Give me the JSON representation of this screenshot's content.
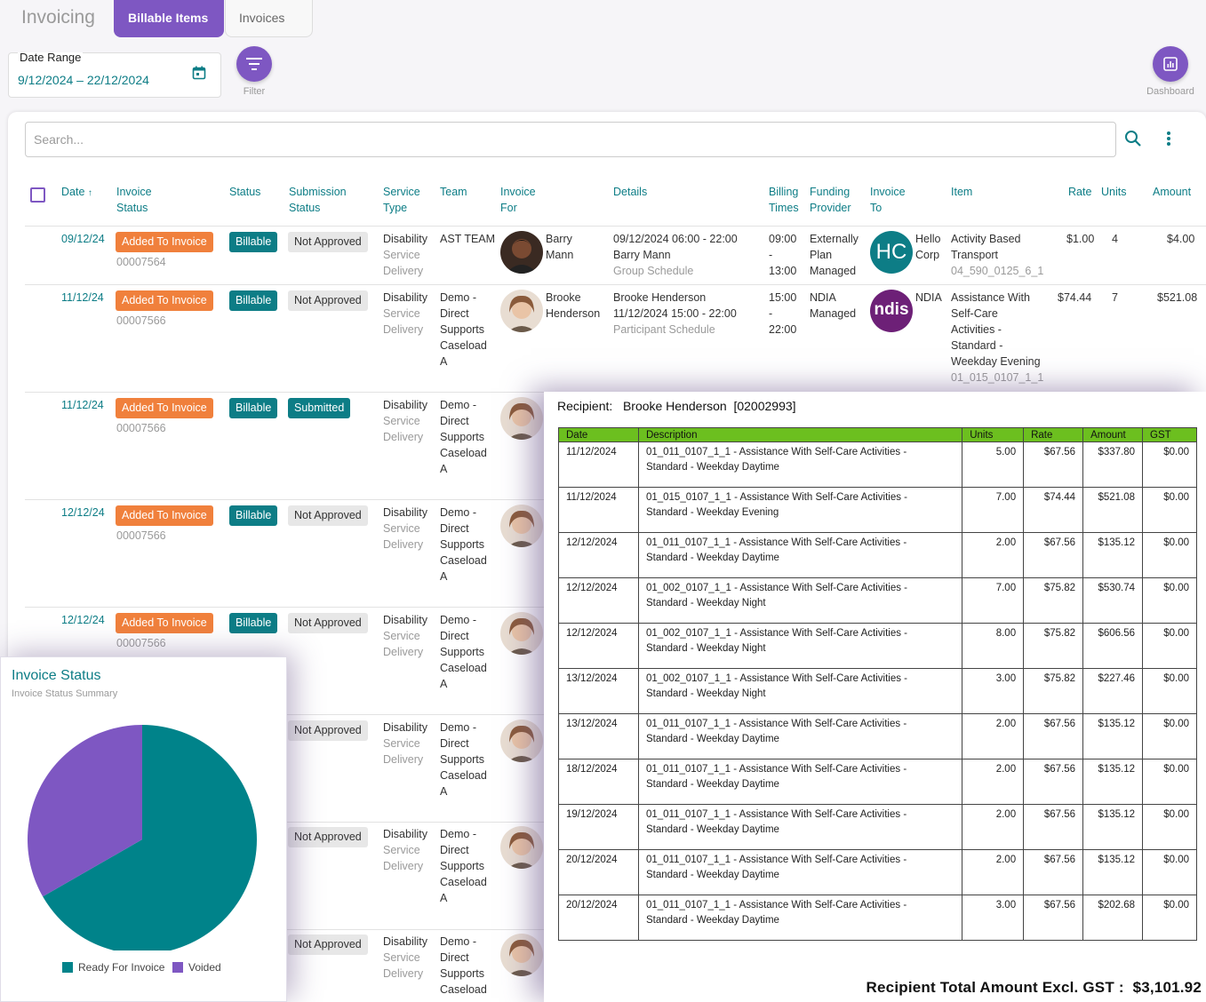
{
  "app": {
    "title": "Invoicing",
    "tabs": [
      "Billable Items",
      "Invoices"
    ]
  },
  "filters": {
    "date_range_label": "Date Range",
    "date_range_value": "9/12/2024 – 22/12/2024",
    "filter_label": "Filter",
    "dashboard_label": "Dashboard"
  },
  "search": {
    "placeholder": "Search..."
  },
  "table": {
    "headers": {
      "date": "Date",
      "invoice_status": [
        "Invoice",
        "Status"
      ],
      "status": "Status",
      "submission_status": [
        "Submission",
        "Status"
      ],
      "service_type": [
        "Service",
        "Type"
      ],
      "team": "Team",
      "invoice_for": [
        "Invoice",
        "For"
      ],
      "details": "Details",
      "billing_times": [
        "Billing",
        "Times"
      ],
      "funding_provider": [
        "Funding",
        "Provider"
      ],
      "invoice_to": [
        "Invoice",
        "To"
      ],
      "item": "Item",
      "rate": "Rate",
      "units": "Units",
      "amount": "Amount"
    },
    "rows": [
      {
        "date": "09/12/24",
        "invoice_status": "Added To Invoice",
        "invoice_no": "00007564",
        "status": "Billable",
        "submission": "Not Approved",
        "service": [
          "Disability",
          "Service",
          "Delivery"
        ],
        "team": [
          "AST TEAM"
        ],
        "person": [
          "Barry",
          "Mann"
        ],
        "details": [
          "09/12/2024 06:00 - 22:00",
          "Barry Mann"
        ],
        "details_sub": "Group Schedule",
        "billing": [
          "09:00",
          "-",
          "13:00"
        ],
        "funding": [
          "Externally",
          "Plan",
          "Managed"
        ],
        "invoice_to_logo": "HC",
        "invoice_to": [
          "Hello",
          "Corp"
        ],
        "item": [
          "Activity Based",
          "Transport"
        ],
        "item_code": "04_590_0125_6_1",
        "rate": "$1.00",
        "units": "4",
        "amount": "$4.00"
      },
      {
        "date": "11/12/24",
        "invoice_status": "Added To Invoice",
        "invoice_no": "00007566",
        "status": "Billable",
        "submission": "Not Approved",
        "service": [
          "Disability",
          "Service",
          "Delivery"
        ],
        "team": [
          "Demo -",
          "Direct",
          "Supports",
          "Caseload",
          "A"
        ],
        "person": [
          "Brooke",
          "Henderson"
        ],
        "details": [
          "Brooke Henderson",
          "11/12/2024 15:00 - 22:00"
        ],
        "details_sub": "Participant Schedule",
        "billing": [
          "15:00",
          "-",
          "22:00"
        ],
        "funding": [
          "NDIA",
          "Managed"
        ],
        "invoice_to_logo": "ndis",
        "invoice_to": [
          "NDIA"
        ],
        "item": [
          "Assistance With",
          "Self-Care",
          "Activities -",
          "Standard -",
          "Weekday Evening"
        ],
        "item_code": "01_015_0107_1_1",
        "rate": "$74.44",
        "units": "7",
        "amount": "$521.08"
      },
      {
        "date": "11/12/24",
        "invoice_status": "Added To Invoice",
        "invoice_no": "00007566",
        "status": "Billable",
        "submission": "Submitted",
        "service": [
          "Disability",
          "Service",
          "Delivery"
        ],
        "team": [
          "Demo -",
          "Direct",
          "Supports",
          "Caseload",
          "A"
        ]
      },
      {
        "date": "12/12/24",
        "invoice_status": "Added To Invoice",
        "invoice_no": "00007566",
        "status": "Billable",
        "submission": "Not Approved",
        "service": [
          "Disability",
          "Service",
          "Delivery"
        ],
        "team": [
          "Demo -",
          "Direct",
          "Supports",
          "Caseload",
          "A"
        ]
      },
      {
        "date": "12/12/24",
        "invoice_status": "Added To Invoice",
        "invoice_no": "00007566",
        "status": "Billable",
        "submission": "Not Approved",
        "service": [
          "Disability",
          "Service",
          "Delivery"
        ],
        "team": [
          "Demo -",
          "Direct",
          "Supports",
          "Caseload",
          "A"
        ]
      },
      {
        "submission": "Not Approved",
        "service": [
          "Disability",
          "Service",
          "Delivery"
        ],
        "team": [
          "Demo -",
          "Direct",
          "Supports",
          "Caseload",
          "A"
        ]
      },
      {
        "submission": "Not Approved",
        "service": [
          "Disability",
          "Service",
          "Delivery"
        ],
        "team": [
          "Demo -",
          "Direct",
          "Supports",
          "Caseload",
          "A"
        ]
      },
      {
        "submission": "Not Approved",
        "service": [
          "Disability",
          "Service",
          "Delivery"
        ],
        "team": [
          "Demo -",
          "Direct",
          "Supports",
          "Caseload"
        ]
      }
    ]
  },
  "invoice_doc": {
    "recipient_label": "Recipient:",
    "recipient_name": "Brooke Henderson",
    "recipient_id": "[02002993]",
    "columns": [
      "Date",
      "Description",
      "Units",
      "Rate",
      "Amount",
      "GST"
    ],
    "lines": [
      {
        "date": "11/12/2024",
        "desc": [
          "01_011_0107_1_1 - Assistance With Self-Care Activities -",
          "Standard - Weekday Daytime"
        ],
        "units": "5.00",
        "rate": "$67.56",
        "amount": "$337.80",
        "gst": "$0.00"
      },
      {
        "date": "11/12/2024",
        "desc": [
          "01_015_0107_1_1 - Assistance With Self-Care Activities -",
          "Standard - Weekday Evening"
        ],
        "units": "7.00",
        "rate": "$74.44",
        "amount": "$521.08",
        "gst": "$0.00"
      },
      {
        "date": "12/12/2024",
        "desc": [
          "01_011_0107_1_1 - Assistance With Self-Care Activities -",
          "Standard - Weekday Daytime"
        ],
        "units": "2.00",
        "rate": "$67.56",
        "amount": "$135.12",
        "gst": "$0.00"
      },
      {
        "date": "12/12/2024",
        "desc": [
          "01_002_0107_1_1 - Assistance With Self-Care Activities -",
          "Standard - Weekday Night"
        ],
        "units": "7.00",
        "rate": "$75.82",
        "amount": "$530.74",
        "gst": "$0.00"
      },
      {
        "date": "12/12/2024",
        "desc": [
          "01_002_0107_1_1 - Assistance With Self-Care Activities -",
          "Standard - Weekday Night"
        ],
        "units": "8.00",
        "rate": "$75.82",
        "amount": "$606.56",
        "gst": "$0.00"
      },
      {
        "date": "13/12/2024",
        "desc": [
          "01_002_0107_1_1 - Assistance With Self-Care Activities -",
          "Standard - Weekday Night"
        ],
        "units": "3.00",
        "rate": "$75.82",
        "amount": "$227.46",
        "gst": "$0.00"
      },
      {
        "date": "13/12/2024",
        "desc": [
          "01_011_0107_1_1 - Assistance With Self-Care Activities -",
          "Standard - Weekday Daytime"
        ],
        "units": "2.00",
        "rate": "$67.56",
        "amount": "$135.12",
        "gst": "$0.00"
      },
      {
        "date": "18/12/2024",
        "desc": [
          "01_011_0107_1_1 - Assistance With Self-Care Activities -",
          "Standard - Weekday Daytime"
        ],
        "units": "2.00",
        "rate": "$67.56",
        "amount": "$135.12",
        "gst": "$0.00"
      },
      {
        "date": "19/12/2024",
        "desc": [
          "01_011_0107_1_1 - Assistance With Self-Care Activities -",
          "Standard - Weekday Daytime"
        ],
        "units": "2.00",
        "rate": "$67.56",
        "amount": "$135.12",
        "gst": "$0.00"
      },
      {
        "date": "20/12/2024",
        "desc": [
          "01_011_0107_1_1 - Assistance With Self-Care Activities -",
          "Standard - Weekday Daytime"
        ],
        "units": "2.00",
        "rate": "$67.56",
        "amount": "$135.12",
        "gst": "$0.00"
      },
      {
        "date": "20/12/2024",
        "desc": [
          "01_011_0107_1_1 - Assistance With Self-Care Activities -",
          "Standard - Weekday Daytime"
        ],
        "units": "3.00",
        "rate": "$67.56",
        "amount": "$202.68",
        "gst": "$0.00"
      }
    ],
    "total_label": "Recipient Total Amount Excl. GST :",
    "total_value": "$3,101.92"
  },
  "invoice_status_card": {
    "title": "Invoice Status",
    "subtitle": "Invoice Status Summary",
    "colors": {
      "ready": "#00838a",
      "voided": "#7e57c2"
    }
  },
  "chart_data": {
    "type": "pie",
    "title": "Invoice Status",
    "subtitle": "Invoice Status Summary",
    "categories": [
      "Ready For Invoice",
      "Voided"
    ],
    "values": [
      66.7,
      33.3
    ],
    "colors": [
      "#00838a",
      "#7e57c2"
    ],
    "legend": "bottom"
  },
  "icons": {
    "calendar": "calendar-icon",
    "filter": "filter-icon",
    "dashboard": "chart-icon",
    "search": "search-icon",
    "more": "more-vert-icon"
  }
}
